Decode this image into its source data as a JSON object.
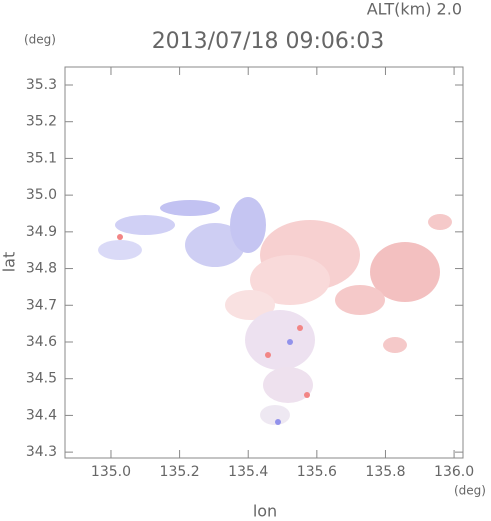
{
  "chart_data": {
    "type": "map",
    "title": "2013/07/18 09:06:03",
    "subtitle": "ALT(km) 2.0",
    "x_label": "lon",
    "y_label": "lat",
    "x_unit": "(deg)",
    "y_unit": "(deg)",
    "xlim": [
      134.866,
      136.026
    ],
    "ylim": [
      34.284,
      35.349
    ],
    "xticks": [
      {
        "value": 135.0,
        "label": "135.0"
      },
      135.2,
      135.4,
      135.6,
      135.8,
      {
        "value": 136.0,
        "label": "136.0"
      }
    ],
    "yticks": [
      34.3,
      34.4,
      34.5,
      34.6,
      34.7,
      34.8,
      34.9,
      {
        "value": 35.0,
        "label": "35.0"
      },
      35.1,
      35.2,
      35.3
    ]
  }
}
